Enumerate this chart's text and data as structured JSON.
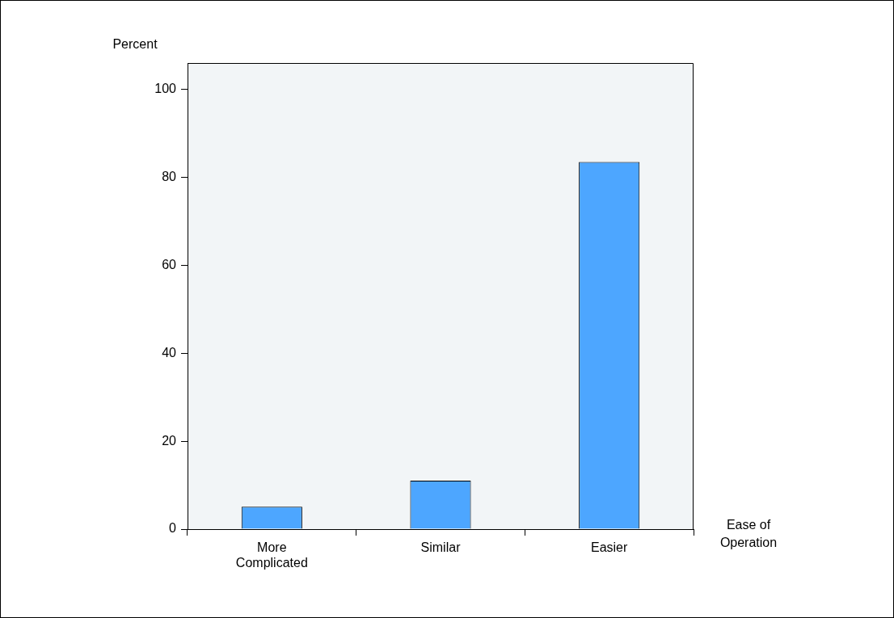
{
  "chart_data": {
    "type": "bar",
    "categories": [
      "More Complicated",
      "Similar",
      "Easier"
    ],
    "values": [
      5.1,
      11,
      83.5
    ],
    "color": "#4da6ff",
    "xlabel": "Ease of Operation",
    "ylabel": "Percent",
    "ylim": [
      0,
      106
    ],
    "yticks": [
      0,
      20,
      40,
      60,
      80,
      100
    ],
    "grid": false,
    "legend": false
  }
}
